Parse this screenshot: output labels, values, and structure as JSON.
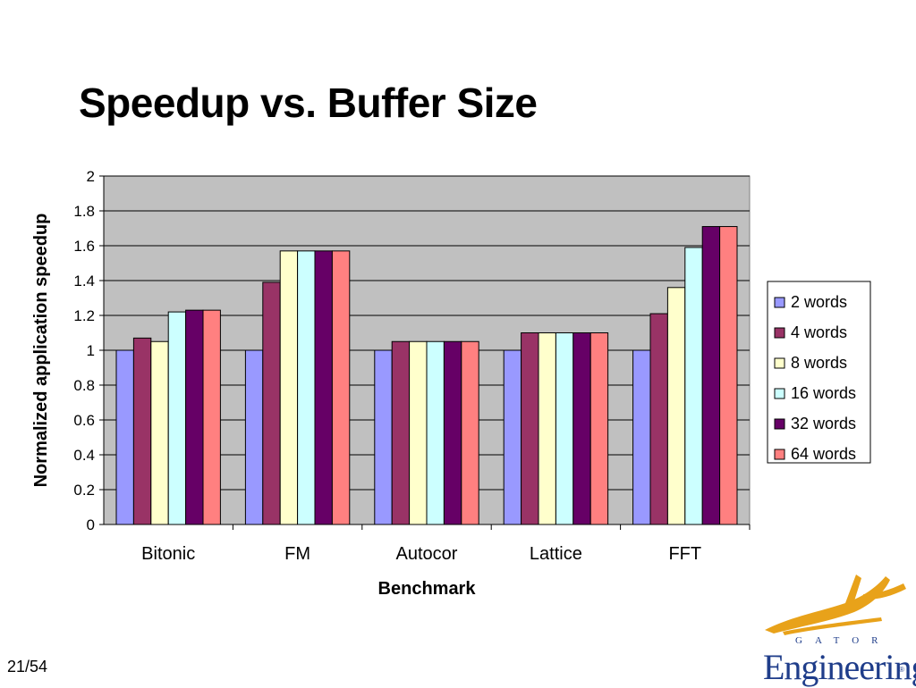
{
  "slide": {
    "title": "Speedup vs. Buffer Size",
    "page_number": "21/54"
  },
  "logo": {
    "word": "Engineering",
    "sub": "GATOR",
    "mark": "®"
  },
  "chart_data": {
    "type": "bar",
    "title": "",
    "xlabel": "Benchmark",
    "ylabel": "Normalized application speedup",
    "ylim": [
      0,
      2
    ],
    "yticks": [
      "0",
      "0.2",
      "0.4",
      "0.6",
      "0.8",
      "1",
      "1.2",
      "1.4",
      "1.6",
      "1.8",
      "2"
    ],
    "grid": true,
    "legend_position": "right",
    "categories": [
      "Bitonic",
      "FM",
      "Autocor",
      "Lattice",
      "FFT"
    ],
    "series": [
      {
        "name": "2 words",
        "color": "#9999ff",
        "values": [
          1.0,
          1.0,
          1.0,
          1.0,
          1.0
        ]
      },
      {
        "name": "4 words",
        "color": "#993366",
        "values": [
          1.07,
          1.39,
          1.05,
          1.1,
          1.21
        ]
      },
      {
        "name": "8 words",
        "color": "#ffffcc",
        "values": [
          1.05,
          1.57,
          1.05,
          1.1,
          1.36
        ]
      },
      {
        "name": "16 words",
        "color": "#ccffff",
        "values": [
          1.22,
          1.57,
          1.05,
          1.1,
          1.59
        ]
      },
      {
        "name": "32 words",
        "color": "#660066",
        "values": [
          1.23,
          1.57,
          1.05,
          1.1,
          1.71
        ]
      },
      {
        "name": "64 words",
        "color": "#ff8080",
        "values": [
          1.23,
          1.57,
          1.05,
          1.1,
          1.71
        ]
      }
    ],
    "plot_background": "#c0c0c0"
  }
}
